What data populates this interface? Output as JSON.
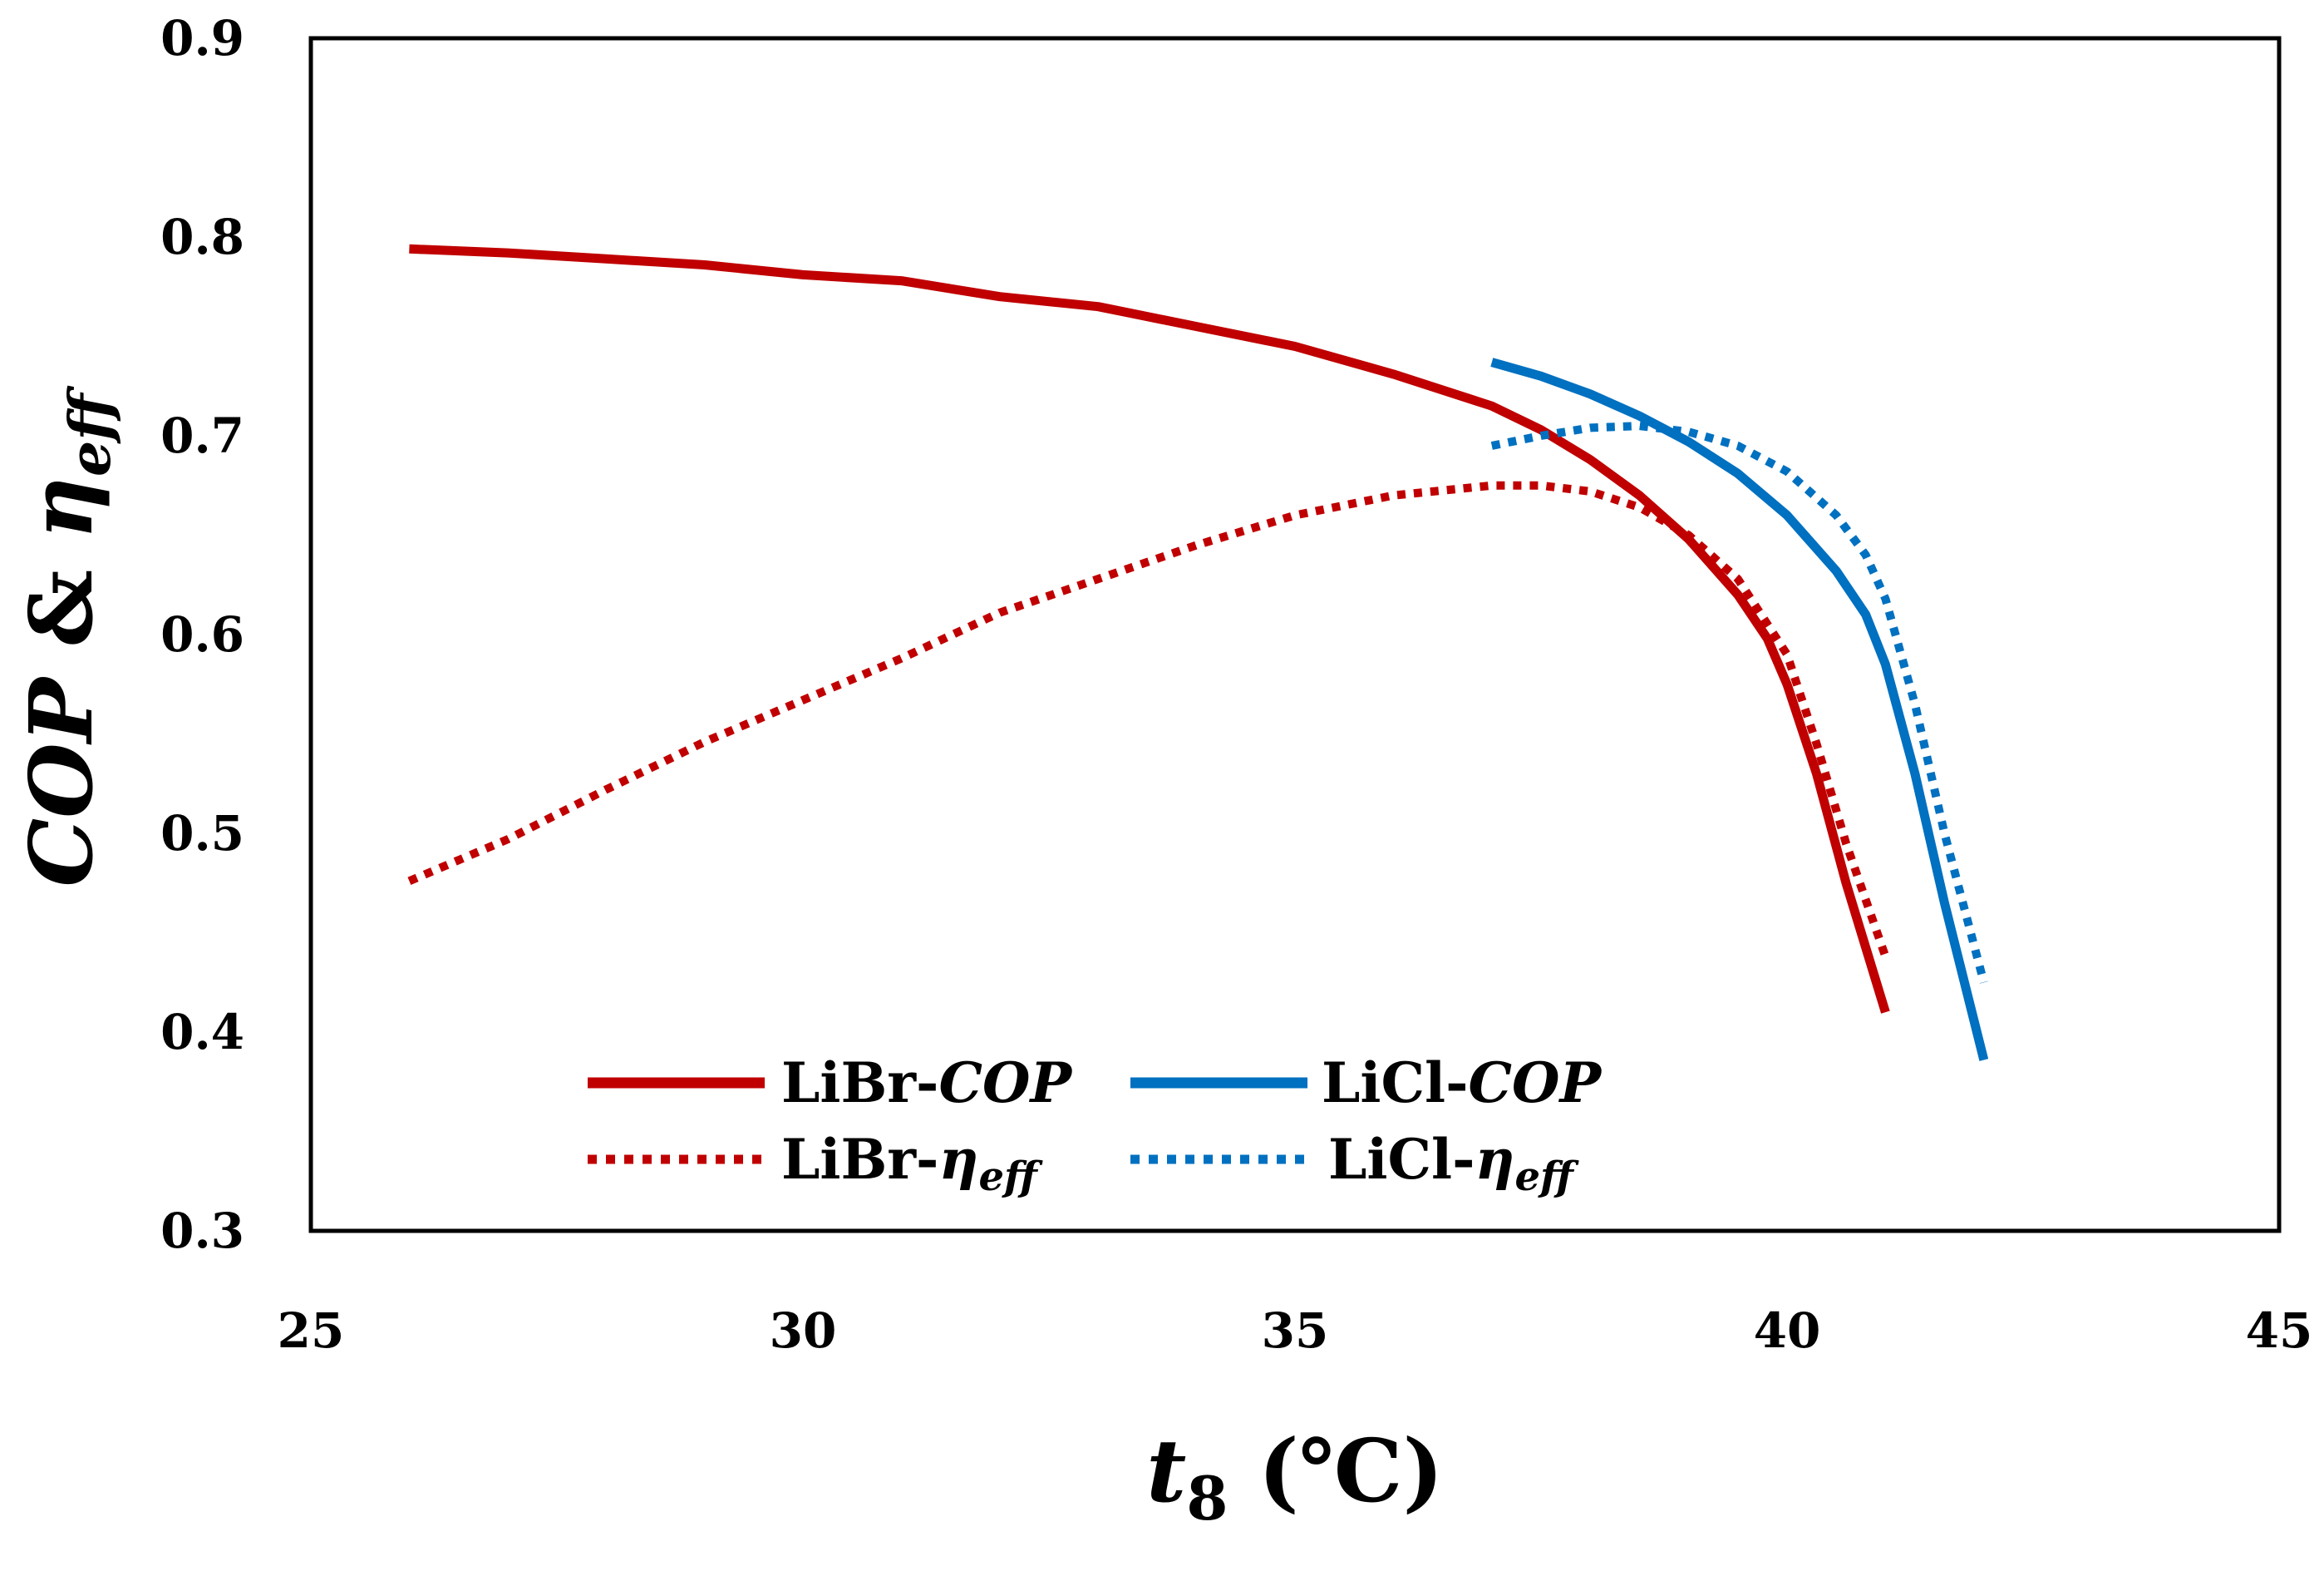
{
  "chart_data": {
    "type": "line",
    "title": "",
    "xlabel": "t8 (℃)",
    "xlabel_parts": {
      "var": "t",
      "sub": "8",
      "unit": " (℃)"
    },
    "ylabel": "COP & ηeff",
    "ylabel_parts": {
      "cop": "COP",
      "amp": " & ",
      "eta": "η",
      "sub": "eff"
    },
    "xlim": [
      25,
      45
    ],
    "ylim": [
      0.3,
      0.9
    ],
    "xticks": [
      25,
      30,
      35,
      40,
      45
    ],
    "xtick_labels": [
      "25",
      "30",
      "35",
      "40",
      "45"
    ],
    "yticks": [
      0.3,
      0.4,
      0.5,
      0.6,
      0.7,
      0.8,
      0.9
    ],
    "ytick_labels": [
      "0.3",
      "0.4",
      "0.5",
      "0.6",
      "0.7",
      "0.8",
      "0.9"
    ],
    "grid": false,
    "legend_position": "bottom-left",
    "series": [
      {
        "name": "LiBr-COP",
        "label_prefix": "LiBr-",
        "label_main": "COP",
        "label_sub": "",
        "color": "#C00000",
        "style": "solid",
        "x": [
          26,
          27,
          28,
          29,
          30,
          31,
          32,
          33,
          34,
          35,
          36,
          37,
          37.5,
          38,
          38.5,
          39,
          39.5,
          39.8,
          40,
          40.3,
          40.6,
          41
        ],
        "y": [
          0.794,
          0.792,
          0.789,
          0.786,
          0.781,
          0.778,
          0.77,
          0.765,
          0.755,
          0.745,
          0.731,
          0.715,
          0.703,
          0.688,
          0.67,
          0.648,
          0.62,
          0.598,
          0.575,
          0.53,
          0.475,
          0.41
        ]
      },
      {
        "name": "LiBr-ηeff",
        "label_prefix": "LiBr-",
        "label_main": "η",
        "label_sub": "eff",
        "color": "#C00000",
        "style": "dotted",
        "x": [
          26,
          27,
          28,
          29,
          30,
          31,
          32,
          33,
          34,
          35,
          36,
          37,
          37.5,
          38,
          38.5,
          39,
          39.5,
          40,
          40.3,
          40.6,
          41
        ],
        "y": [
          0.476,
          0.497,
          0.522,
          0.546,
          0.567,
          0.588,
          0.611,
          0.628,
          0.645,
          0.66,
          0.67,
          0.675,
          0.675,
          0.672,
          0.664,
          0.65,
          0.628,
          0.59,
          0.545,
          0.495,
          0.438
        ]
      },
      {
        "name": "LiCl-COP",
        "label_prefix": "LiCl-",
        "label_main": "COP",
        "label_sub": "",
        "color": "#0070C0",
        "style": "solid",
        "x": [
          37,
          37.5,
          38,
          38.5,
          39,
          39.5,
          40,
          40.5,
          40.8,
          41,
          41.3,
          41.6,
          42
        ],
        "y": [
          0.737,
          0.73,
          0.721,
          0.71,
          0.697,
          0.681,
          0.66,
          0.632,
          0.61,
          0.585,
          0.53,
          0.465,
          0.386
        ]
      },
      {
        "name": "LiCl-ηeff",
        "label_prefix": "LiCl-",
        "label_main": "η",
        "label_sub": "eff",
        "color": "#0070C0",
        "style": "dotted",
        "x": [
          37,
          37.5,
          38,
          38.5,
          39,
          39.5,
          40,
          40.5,
          40.8,
          41,
          41.3,
          41.6,
          42
        ],
        "y": [
          0.695,
          0.7,
          0.704,
          0.705,
          0.702,
          0.695,
          0.682,
          0.66,
          0.64,
          0.618,
          0.565,
          0.5,
          0.425
        ]
      }
    ]
  }
}
